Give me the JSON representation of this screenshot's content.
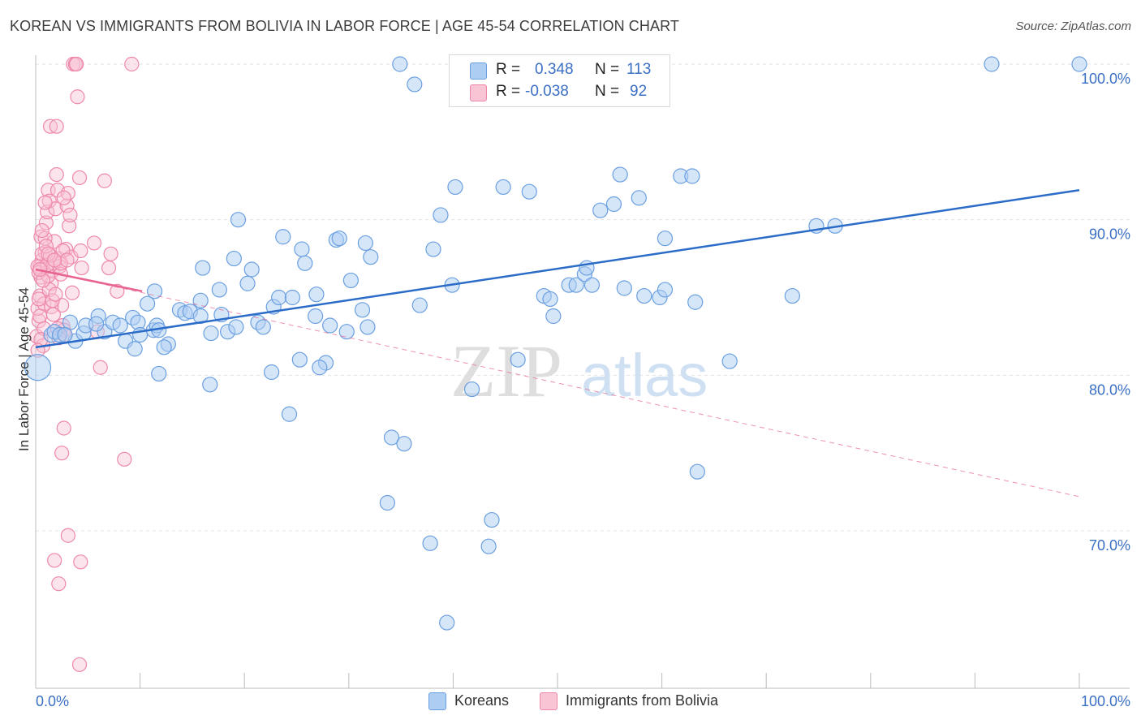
{
  "title": "KOREAN VS IMMIGRANTS FROM BOLIVIA IN LABOR FORCE | AGE 45-54 CORRELATION CHART",
  "source": "Source: ZipAtlas.com",
  "watermark": {
    "zip": "ZIP",
    "atlas": "atlas"
  },
  "legend": {
    "rows": [
      {
        "r_label": "R =",
        "r_value": "0.348",
        "n_label": "N =",
        "n_value": "113",
        "color": "#a8c8f0"
      },
      {
        "r_label": "R =",
        "r_value": "-0.038",
        "n_label": "N =",
        "n_value": "92",
        "color": "#f7b8cc"
      }
    ]
  },
  "bottom_legend": [
    {
      "label": "Koreans",
      "color": "#a8c8f0"
    },
    {
      "label": "Immigrants from Bolivia",
      "color": "#f7b8cc"
    }
  ],
  "colors": {
    "blue_stroke": "#6a9fe0",
    "blue_fill": "#aecdf3",
    "blue_line": "#2a6cc8",
    "pink_stroke": "#ee88aa",
    "pink_fill": "#f9c4d4",
    "pink_line": "#e8648e"
  },
  "chart_data": {
    "type": "scatter",
    "title": "KOREAN VS IMMIGRANTS FROM BOLIVIA IN LABOR FORCE | AGE 45-54 CORRELATION CHART",
    "xlabel": "",
    "ylabel": "In Labor Force | Age 45-54",
    "xlim": [
      0,
      100
    ],
    "ylim": [
      61,
      102
    ],
    "x_tick_labels": [
      "0.0%",
      "100.0%"
    ],
    "y_ticks": [
      70,
      80,
      90,
      100
    ],
    "y_tick_labels": [
      "70.0%",
      "80.0%",
      "90.0%",
      "100.0%"
    ],
    "grid": true,
    "series": [
      {
        "name": "Koreans",
        "color": "#a8c8f0",
        "trend": {
          "x": [
            0,
            100
          ],
          "y": [
            81.8,
            91.9
          ]
        },
        "points": [
          [
            0.2,
            80.5
          ],
          [
            1.5,
            82.6
          ],
          [
            1.8,
            82.8
          ],
          [
            2.3,
            82.6
          ],
          [
            3.3,
            83.4
          ],
          [
            3.8,
            82.2
          ],
          [
            4.6,
            82.7
          ],
          [
            4.8,
            83.2
          ],
          [
            6.0,
            83.8
          ],
          [
            6.6,
            82.8
          ],
          [
            7.4,
            83.4
          ],
          [
            8.1,
            83.2
          ],
          [
            8.6,
            82.2
          ],
          [
            9.3,
            83.7
          ],
          [
            9.8,
            83.4
          ],
          [
            10.0,
            82.6
          ],
          [
            9.5,
            81.7
          ],
          [
            11.3,
            82.9
          ],
          [
            11.6,
            83.2
          ],
          [
            10.7,
            84.6
          ],
          [
            11.8,
            82.9
          ],
          [
            11.4,
            85.4
          ],
          [
            11.8,
            80.1
          ],
          [
            12.7,
            82.0
          ],
          [
            12.3,
            81.8
          ],
          [
            13.8,
            84.2
          ],
          [
            14.3,
            84.0
          ],
          [
            14.8,
            84.1
          ],
          [
            15.8,
            84.8
          ],
          [
            15.8,
            83.8
          ],
          [
            16.0,
            86.9
          ],
          [
            16.8,
            82.7
          ],
          [
            16.7,
            79.4
          ],
          [
            17.8,
            83.9
          ],
          [
            17.6,
            85.5
          ],
          [
            18.4,
            82.8
          ],
          [
            19.0,
            87.5
          ],
          [
            19.2,
            83.1
          ],
          [
            19.4,
            90.0
          ],
          [
            20.3,
            85.9
          ],
          [
            20.7,
            86.8
          ],
          [
            21.3,
            83.4
          ],
          [
            21.8,
            83.1
          ],
          [
            22.6,
            80.2
          ],
          [
            22.8,
            84.4
          ],
          [
            23.3,
            85.0
          ],
          [
            23.7,
            88.9
          ],
          [
            24.3,
            77.5
          ],
          [
            24.6,
            85.0
          ],
          [
            25.5,
            88.1
          ],
          [
            25.8,
            87.2
          ],
          [
            25.3,
            81.0
          ],
          [
            26.8,
            83.8
          ],
          [
            26.9,
            85.2
          ],
          [
            27.8,
            80.8
          ],
          [
            27.2,
            80.5
          ],
          [
            28.2,
            83.2
          ],
          [
            28.8,
            88.7
          ],
          [
            29.1,
            88.8
          ],
          [
            29.8,
            82.8
          ],
          [
            30.2,
            86.1
          ],
          [
            31.6,
            88.5
          ],
          [
            31.3,
            84.2
          ],
          [
            32.1,
            87.6
          ],
          [
            31.8,
            83.1
          ],
          [
            34.1,
            76.0
          ],
          [
            35.3,
            75.6
          ],
          [
            33.7,
            71.8
          ],
          [
            34.9,
            100.0
          ],
          [
            36.3,
            98.7
          ],
          [
            36.8,
            84.5
          ],
          [
            38.1,
            88.1
          ],
          [
            38.8,
            90.3
          ],
          [
            37.8,
            69.2
          ],
          [
            39.4,
            64.1
          ],
          [
            39.9,
            85.8
          ],
          [
            40.2,
            92.1
          ],
          [
            40.9,
            100.0
          ],
          [
            41.8,
            79.1
          ],
          [
            43.4,
            69.0
          ],
          [
            43.7,
            70.7
          ],
          [
            44.8,
            92.1
          ],
          [
            46.2,
            81.0
          ],
          [
            47.3,
            91.8
          ],
          [
            48.7,
            85.1
          ],
          [
            49.3,
            84.9
          ],
          [
            49.6,
            83.8
          ],
          [
            51.1,
            85.8
          ],
          [
            51.8,
            85.8
          ],
          [
            52.6,
            86.5
          ],
          [
            52.8,
            86.9
          ],
          [
            53.3,
            85.8
          ],
          [
            54.1,
            90.6
          ],
          [
            55.4,
            91.0
          ],
          [
            56.0,
            92.9
          ],
          [
            56.4,
            85.6
          ],
          [
            57.8,
            91.4
          ],
          [
            58.3,
            85.1
          ],
          [
            59.8,
            85.0
          ],
          [
            60.3,
            88.8
          ],
          [
            60.3,
            85.5
          ],
          [
            61.8,
            92.8
          ],
          [
            62.9,
            92.8
          ],
          [
            63.2,
            84.7
          ],
          [
            63.4,
            73.8
          ],
          [
            66.5,
            80.9
          ],
          [
            72.5,
            85.1
          ],
          [
            74.8,
            89.6
          ],
          [
            76.6,
            89.6
          ],
          [
            91.6,
            100.0
          ],
          [
            100.0,
            100.0
          ],
          [
            2.8,
            82.6
          ],
          [
            5.8,
            83.3
          ]
        ]
      },
      {
        "name": "Immigrants from Bolivia",
        "color": "#f7b8cc",
        "trend": {
          "x": [
            0,
            10.2
          ],
          "y": [
            86.8,
            85.4
          ]
        },
        "trend_dashed": {
          "x": [
            0,
            100
          ],
          "y": [
            86.8,
            72.2
          ]
        },
        "points": [
          [
            0.1,
            82.5
          ],
          [
            0.3,
            83.5
          ],
          [
            0.2,
            84.3
          ],
          [
            0.4,
            85.1
          ],
          [
            0.5,
            86.3
          ],
          [
            0.4,
            87.0
          ],
          [
            0.6,
            87.4
          ],
          [
            0.5,
            88.9
          ],
          [
            0.7,
            86.8
          ],
          [
            0.8,
            84.6
          ],
          [
            0.9,
            87.9
          ],
          [
            1.0,
            89.8
          ],
          [
            1.1,
            90.5
          ],
          [
            1.2,
            91.9
          ],
          [
            1.3,
            91.2
          ],
          [
            1.4,
            96.0
          ],
          [
            1.5,
            85.9
          ],
          [
            1.6,
            86.7
          ],
          [
            1.7,
            87.2
          ],
          [
            1.8,
            88.6
          ],
          [
            1.9,
            90.7
          ],
          [
            2.0,
            92.9
          ],
          [
            2.1,
            91.9
          ],
          [
            2.2,
            87.5
          ],
          [
            2.3,
            87.0
          ],
          [
            2.4,
            86.5
          ],
          [
            2.5,
            84.5
          ],
          [
            2.6,
            83.2
          ],
          [
            2.7,
            82.9
          ],
          [
            2.8,
            82.6
          ],
          [
            2.9,
            88.1
          ],
          [
            3.0,
            90.9
          ],
          [
            3.1,
            91.7
          ],
          [
            3.2,
            89.6
          ],
          [
            3.3,
            90.3
          ],
          [
            3.4,
            87.6
          ],
          [
            3.5,
            85.3
          ],
          [
            3.6,
            100.0
          ],
          [
            3.8,
            100.0
          ],
          [
            3.9,
            100.0
          ],
          [
            4.0,
            97.9
          ],
          [
            4.2,
            92.7
          ],
          [
            4.3,
            88.0
          ],
          [
            4.4,
            86.9
          ],
          [
            5.6,
            88.5
          ],
          [
            5.9,
            82.8
          ],
          [
            6.2,
            80.5
          ],
          [
            6.6,
            92.5
          ],
          [
            7.0,
            86.9
          ],
          [
            7.2,
            87.8
          ],
          [
            7.8,
            85.4
          ],
          [
            8.5,
            74.6
          ],
          [
            9.2,
            100.0
          ],
          [
            2.0,
            96.0
          ],
          [
            1.8,
            68.1
          ],
          [
            2.2,
            66.6
          ],
          [
            2.7,
            76.6
          ],
          [
            2.5,
            75.0
          ],
          [
            3.1,
            69.7
          ],
          [
            4.3,
            68.0
          ],
          [
            4.2,
            61.4
          ],
          [
            0.2,
            87.0
          ],
          [
            0.3,
            86.6
          ],
          [
            0.6,
            87.8
          ],
          [
            0.9,
            88.8
          ],
          [
            1.2,
            86.4
          ],
          [
            1.3,
            85.5
          ],
          [
            1.5,
            84.4
          ],
          [
            1.6,
            84.8
          ],
          [
            0.8,
            83.0
          ],
          [
            0.7,
            81.9
          ],
          [
            0.4,
            83.8
          ],
          [
            1.9,
            85.2
          ],
          [
            2.4,
            87.2
          ],
          [
            2.6,
            88.0
          ],
          [
            2.7,
            91.4
          ],
          [
            3.0,
            87.4
          ],
          [
            1.1,
            87.1
          ],
          [
            1.4,
            87.7
          ],
          [
            0.9,
            91.1
          ],
          [
            1.0,
            88.3
          ],
          [
            0.6,
            89.3
          ],
          [
            0.5,
            82.3
          ],
          [
            0.3,
            84.9
          ],
          [
            1.7,
            83.9
          ],
          [
            2.1,
            83.0
          ],
          [
            2.2,
            82.4
          ],
          [
            0.2,
            81.6
          ],
          [
            1.2,
            87.8
          ],
          [
            1.8,
            87.4
          ],
          [
            0.7,
            86.1
          ],
          [
            0.4,
            86.8
          ]
        ]
      }
    ]
  }
}
